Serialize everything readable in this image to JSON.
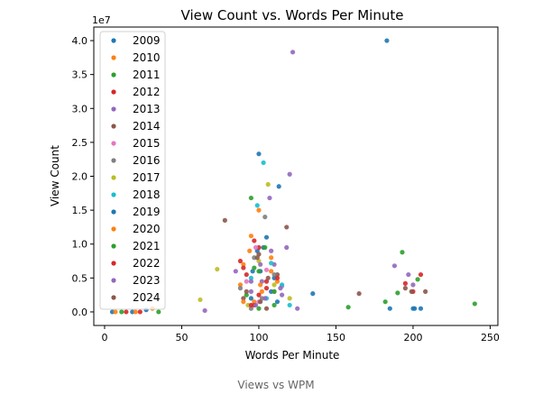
{
  "caption": "Views vs WPM",
  "chart_data": {
    "type": "scatter",
    "title": "View Count vs. Words Per Minute",
    "xlabel": "Words Per Minute",
    "ylabel": "View Count",
    "y_multiplier": "1e7",
    "xlim": [
      -7,
      255
    ],
    "ylim": [
      -0.2,
      4.2
    ],
    "x_ticks": [
      0,
      50,
      100,
      150,
      200,
      250
    ],
    "y_ticks": [
      0.0,
      0.5,
      1.0,
      1.5,
      2.0,
      2.5,
      3.0,
      3.5,
      4.0
    ],
    "x_tick_labels": [
      "0",
      "50",
      "100",
      "150",
      "200",
      "250"
    ],
    "y_tick_labels": [
      "0.0",
      "0.5",
      "1.0",
      "1.5",
      "2.0",
      "2.5",
      "3.0",
      "3.5",
      "4.0"
    ],
    "grid": false,
    "legend": "upper-left",
    "colors": [
      "#1f77b4",
      "#ff7f0e",
      "#2ca02c",
      "#d62728",
      "#9467bd",
      "#8c564b",
      "#e377c2",
      "#7f7f7f",
      "#bcbd22",
      "#17becf",
      "#1f77b4",
      "#ff7f0e",
      "#2ca02c",
      "#d62728",
      "#9467bd",
      "#8c564b"
    ],
    "series": [
      {
        "name": "2009",
        "points": [
          [
            5,
            0.0
          ],
          [
            18,
            0.0
          ],
          [
            27,
            0.03
          ],
          [
            183,
            4.0
          ],
          [
            105,
            1.1
          ],
          [
            99,
            0.9
          ],
          [
            110,
            0.5
          ],
          [
            95,
            0.2
          ],
          [
            185,
            0.05
          ],
          [
            201,
            0.05
          ],
          [
            205,
            0.05
          ],
          [
            200,
            0.05
          ],
          [
            135,
            0.27
          ],
          [
            101,
            0.6
          ]
        ]
      },
      {
        "name": "2010",
        "points": [
          [
            7,
            0.0
          ],
          [
            20,
            0.0
          ],
          [
            31,
            0.05
          ],
          [
            95,
            1.12
          ],
          [
            90,
            0.7
          ],
          [
            102,
            0.3
          ],
          [
            108,
            0.8
          ],
          [
            97,
            0.15
          ],
          [
            112,
            0.45
          ],
          [
            88,
            0.4
          ]
        ]
      },
      {
        "name": "2011",
        "points": [
          [
            11,
            0.0
          ],
          [
            35,
            0.0
          ],
          [
            95,
            1.68
          ],
          [
            240,
            0.12
          ],
          [
            190,
            0.28
          ],
          [
            193,
            0.88
          ],
          [
            203,
            0.48
          ],
          [
            100,
            0.6
          ],
          [
            92,
            0.25
          ],
          [
            110,
            0.1
          ]
        ]
      },
      {
        "name": "2012",
        "points": [
          [
            14,
            0.0
          ],
          [
            23,
            0.0
          ],
          [
            205,
            0.55
          ],
          [
            195,
            0.42
          ],
          [
            200,
            0.3
          ],
          [
            100,
            0.95
          ],
          [
            92,
            0.55
          ],
          [
            105,
            0.35
          ],
          [
            88,
            0.75
          ],
          [
            97,
            0.1
          ]
        ]
      },
      {
        "name": "2013",
        "points": [
          [
            122,
            3.83
          ],
          [
            120,
            2.03
          ],
          [
            107,
            1.68
          ],
          [
            188,
            0.68
          ],
          [
            200,
            0.4
          ],
          [
            197,
            0.55
          ],
          [
            118,
            0.95
          ],
          [
            110,
            0.7
          ],
          [
            102,
            0.45
          ],
          [
            95,
            0.3
          ],
          [
            115,
            0.25
          ],
          [
            65,
            0.02
          ],
          [
            125,
            0.05
          ],
          [
            85,
            0.6
          ]
        ]
      },
      {
        "name": "2014",
        "points": [
          [
            78,
            1.35
          ],
          [
            165,
            0.27
          ],
          [
            195,
            0.35
          ],
          [
            118,
            1.25
          ],
          [
            100,
            0.85
          ],
          [
            112,
            0.55
          ],
          [
            90,
            0.2
          ],
          [
            105,
            0.05
          ]
        ]
      },
      {
        "name": "2015",
        "points": [
          [
            98,
            0.95
          ],
          [
            105,
            0.62
          ],
          [
            92,
            0.45
          ],
          [
            110,
            0.3
          ],
          [
            100,
            0.15
          ],
          [
            115,
            0.38
          ]
        ]
      },
      {
        "name": "2016",
        "points": [
          [
            104,
            1.4
          ],
          [
            97,
            0.8
          ],
          [
            110,
            0.55
          ],
          [
            88,
            0.35
          ],
          [
            102,
            0.2
          ],
          [
            95,
            0.05
          ]
        ]
      },
      {
        "name": "2017",
        "points": [
          [
            73,
            0.63
          ],
          [
            106,
            1.88
          ],
          [
            62,
            0.18
          ],
          [
            120,
            0.2
          ],
          [
            100,
            0.75
          ],
          [
            110,
            0.4
          ],
          [
            93,
            0.1
          ]
        ]
      },
      {
        "name": "2018",
        "points": [
          [
            103,
            2.2
          ],
          [
            99,
            1.57
          ],
          [
            115,
            0.4
          ],
          [
            108,
            0.72
          ],
          [
            95,
            0.5
          ],
          [
            120,
            0.1
          ],
          [
            105,
            0.2
          ]
        ]
      },
      {
        "name": "2019",
        "points": [
          [
            100,
            2.33
          ],
          [
            113,
            1.85
          ],
          [
            103,
            0.95
          ],
          [
            96,
            0.6
          ],
          [
            108,
            0.3
          ],
          [
            112,
            0.15
          ]
        ]
      },
      {
        "name": "2020",
        "points": [
          [
            100,
            1.5
          ],
          [
            94,
            0.9
          ],
          [
            108,
            0.6
          ],
          [
            101,
            0.4
          ],
          [
            90,
            0.15
          ]
        ]
      },
      {
        "name": "2021",
        "points": [
          [
            158,
            0.07
          ],
          [
            182,
            0.15
          ],
          [
            104,
            0.95
          ],
          [
            97,
            0.65
          ],
          [
            110,
            0.3
          ],
          [
            100,
            0.05
          ]
        ]
      },
      {
        "name": "2022",
        "points": [
          [
            97,
            1.05
          ],
          [
            90,
            0.65
          ],
          [
            105,
            0.45
          ],
          [
            100,
            0.25
          ],
          [
            95,
            0.1
          ],
          [
            112,
            0.5
          ]
        ]
      },
      {
        "name": "2023",
        "points": [
          [
            108,
            0.9
          ],
          [
            101,
            0.7
          ],
          [
            95,
            0.45
          ],
          [
            114,
            0.35
          ],
          [
            104,
            0.2
          ],
          [
            98,
            0.1
          ]
        ]
      },
      {
        "name": "2024",
        "points": [
          [
            199,
            0.3
          ],
          [
            208,
            0.3
          ],
          [
            99,
            0.8
          ],
          [
            106,
            0.5
          ],
          [
            92,
            0.3
          ],
          [
            101,
            0.15
          ]
        ]
      }
    ]
  }
}
